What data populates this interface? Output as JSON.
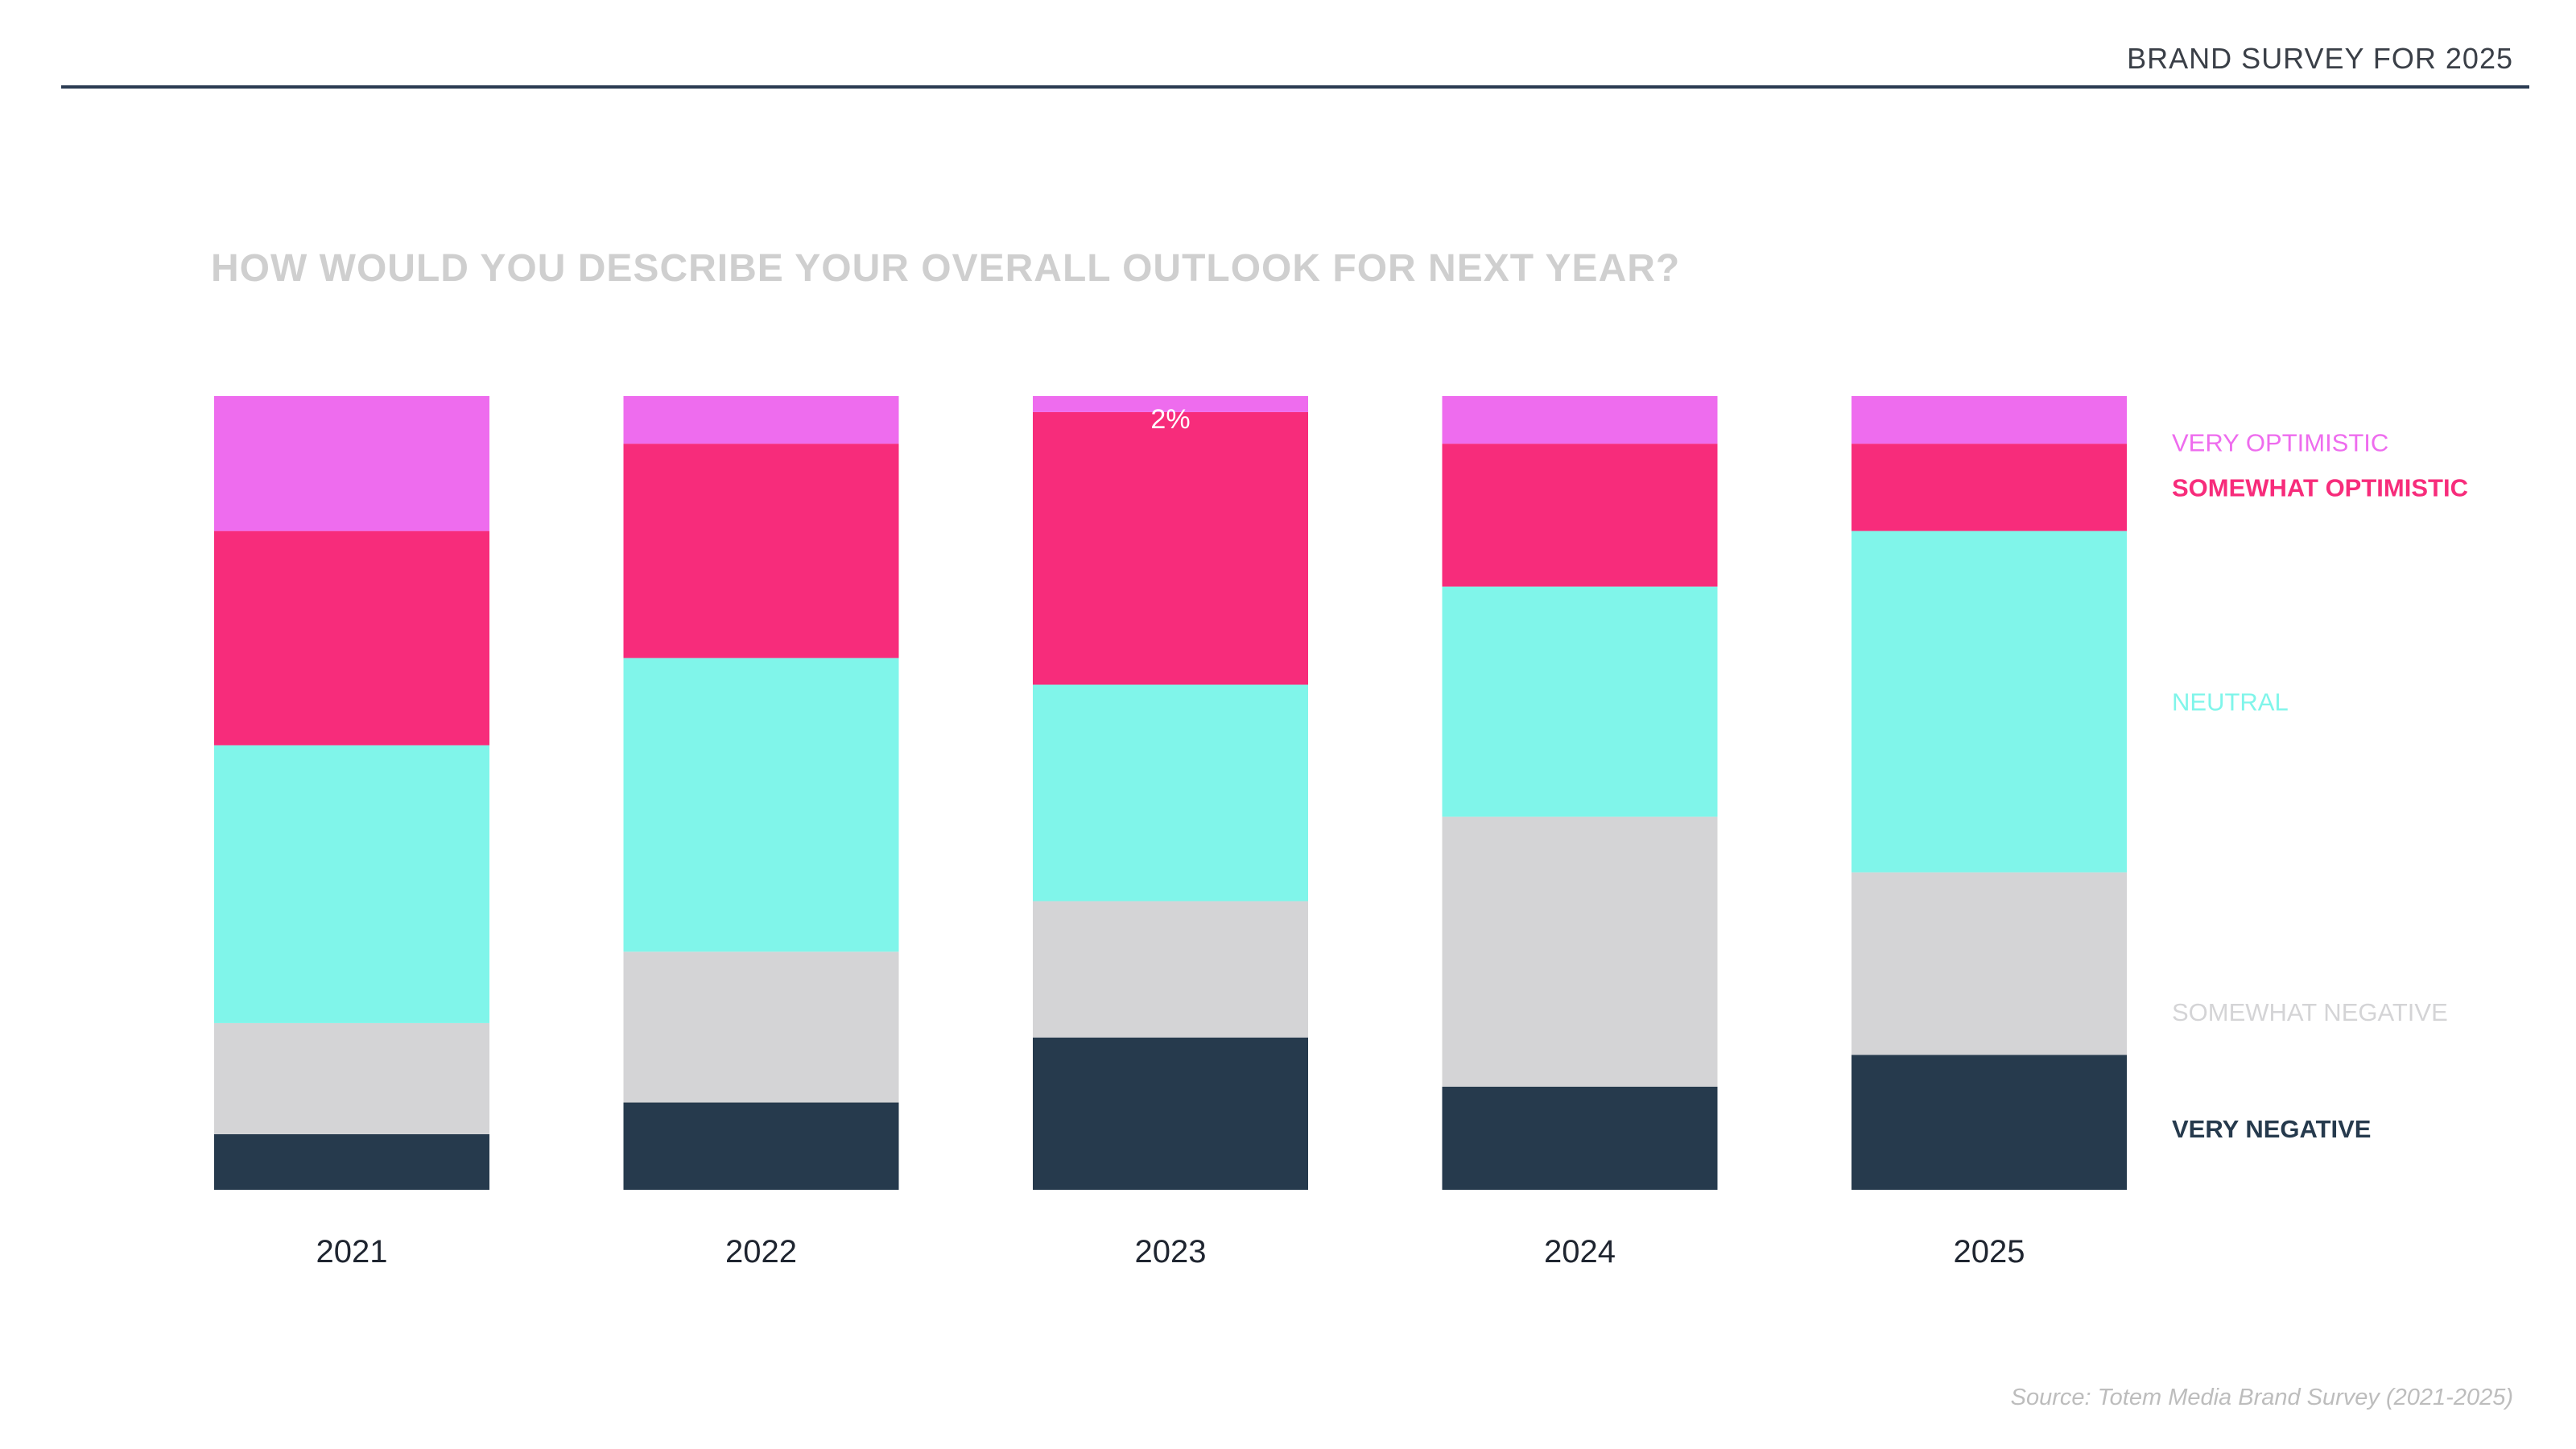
{
  "header": {
    "title": "BRAND SURVEY FOR 2025"
  },
  "question": "HOW WOULD YOU DESCRIBE YOUR OVERALL OUTLOOK FOR NEXT YEAR?",
  "source": "Source: Totem Media Brand Survey (2021-2025)",
  "chart_data": {
    "type": "bar",
    "stacked": true,
    "normalized_percent": true,
    "title": "",
    "xlabel": "",
    "ylabel": "",
    "ylim": [
      0,
      100
    ],
    "grid": false,
    "legend_placement": "right",
    "categories": [
      "2021",
      "2022",
      "2023",
      "2024",
      "2025"
    ],
    "series": [
      {
        "name": "VERY NEGATIVE",
        "color": "#263A4D",
        "values": [
          7,
          11,
          19,
          13,
          17
        ]
      },
      {
        "name": "SOMEWHAT NEGATIVE",
        "color": "#D4D4D6",
        "values": [
          14,
          19,
          17,
          34,
          23
        ]
      },
      {
        "name": "NEUTRAL",
        "color": "#80F5EA",
        "values": [
          35,
          37,
          27,
          29,
          43
        ]
      },
      {
        "name": "SOMEWHAT OPTIMISTIC",
        "color": "#F72C7B",
        "values": [
          27,
          27,
          34,
          18,
          11
        ]
      },
      {
        "name": "VERY OPTIMISTIC",
        "color": "#EE6CEE",
        "values": [
          17,
          6,
          2,
          6,
          6
        ]
      }
    ],
    "annotations": [
      {
        "category": "2023",
        "series": "VERY OPTIMISTIC",
        "text": "2%",
        "color": "#ffffff"
      }
    ],
    "legend_colors": {
      "VERY OPTIMISTIC": "#EE6CEE",
      "SOMEWHAT OPTIMISTIC": "#F72C7B",
      "NEUTRAL": "#80F5EA",
      "SOMEWHAT NEGATIVE": "#D4D4D6",
      "VERY NEGATIVE": "#263A4D"
    }
  }
}
